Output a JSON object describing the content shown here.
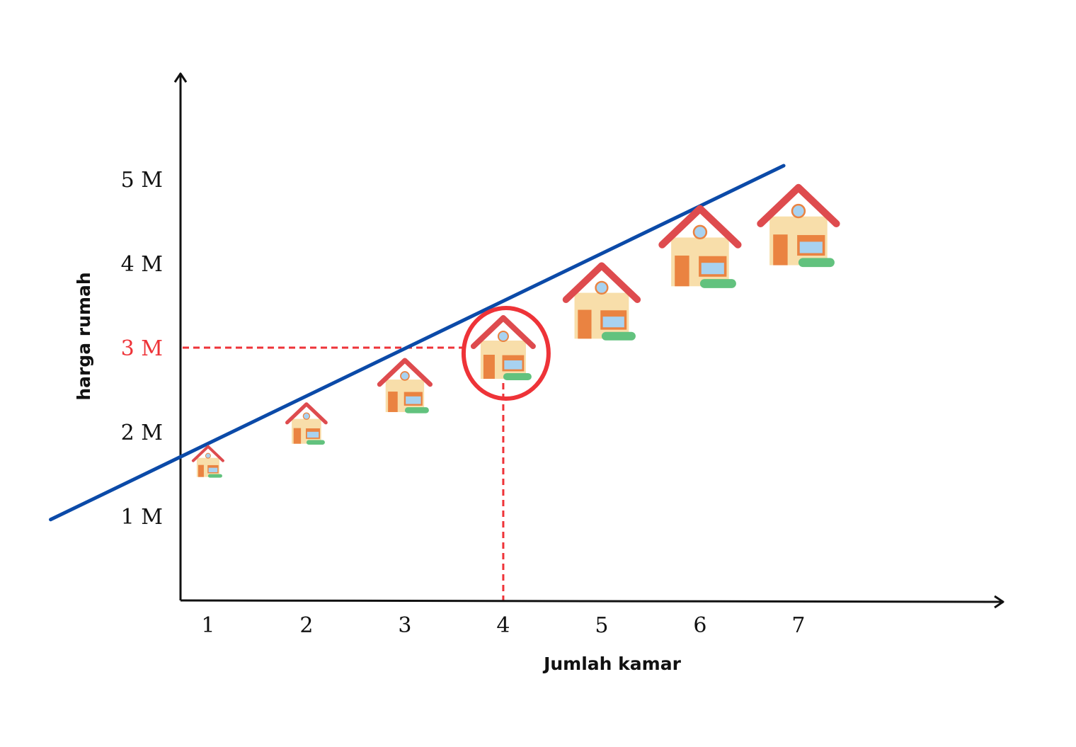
{
  "chart_data": {
    "type": "line",
    "xlabel": "Jumlah kamar",
    "ylabel": "harga rumah",
    "x_ticks": [
      "1",
      "2",
      "3",
      "4",
      "5",
      "6",
      "7"
    ],
    "y_ticks": [
      "1 M",
      "2 M",
      "3 M",
      "4 M",
      "5 M"
    ],
    "xlim": [
      0,
      8.3
    ],
    "ylim": [
      0,
      5.3
    ],
    "trend_line": {
      "x": [
        -0.6,
        6.85
      ],
      "y": [
        0.96,
        5.16
      ]
    },
    "houses": [
      {
        "x": 1,
        "y": 1.65,
        "size": 1.0
      },
      {
        "x": 2,
        "y": 2.1,
        "size": 1.3
      },
      {
        "x": 3,
        "y": 2.55,
        "size": 1.7
      },
      {
        "x": 4,
        "y": 3.0,
        "size": 2.0
      },
      {
        "x": 5,
        "y": 3.55,
        "size": 2.4
      },
      {
        "x": 6,
        "y": 4.2,
        "size": 2.55
      },
      {
        "x": 7,
        "y": 4.45,
        "size": 2.55
      }
    ],
    "highlight": {
      "x": 4,
      "y": 3,
      "y_label": "3 M"
    },
    "colors": {
      "trend_line": "#0b4aa8",
      "highlight": "#ee3338",
      "axis": "#111111",
      "house_wall": "#f8deaa",
      "house_roof": "#de4b4e",
      "house_door": "#ea8341",
      "house_window": "#a8d2f0",
      "house_bush": "#62c27e"
    }
  }
}
